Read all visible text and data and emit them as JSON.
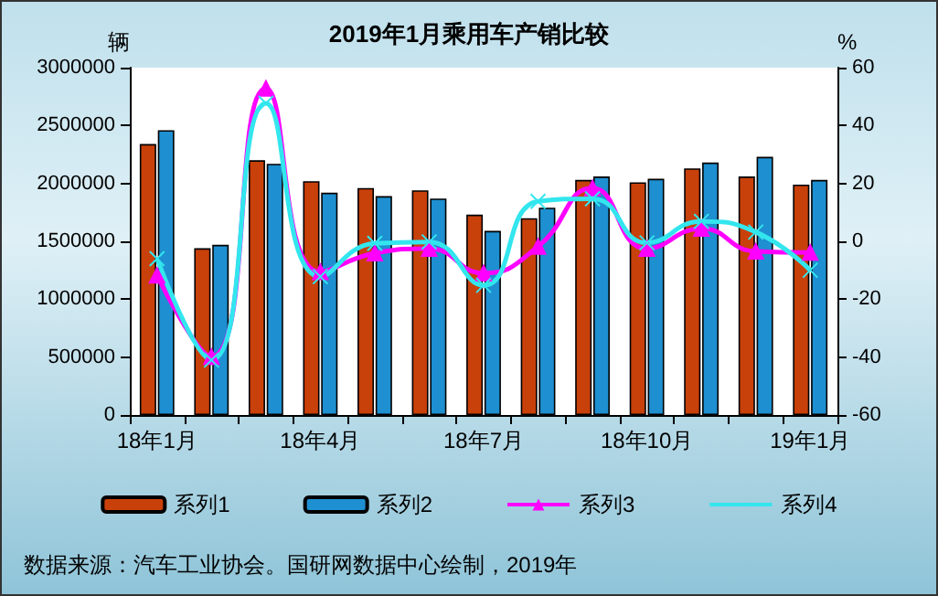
{
  "chart_data": {
    "type": "bar",
    "title": "2019年1月乘用车产销比较",
    "ylabel": "辆",
    "y2label": "%",
    "categories": [
      "18年1月",
      null,
      null,
      "18年4月",
      null,
      null,
      "18年7月",
      null,
      null,
      "18年10月",
      null,
      null,
      "19年1月"
    ],
    "series": [
      {
        "name": "系列1",
        "color": "#c8400a",
        "values": [
          2340000,
          1440000,
          2200000,
          2020000,
          1960000,
          1940000,
          1730000,
          1700000,
          2030000,
          2010000,
          2130000,
          2060000,
          1990000
        ]
      },
      {
        "name": "系列2",
        "color": "#1e8fd0",
        "values": [
          2460000,
          1470000,
          2170000,
          1920000,
          1890000,
          1870000,
          1590000,
          1790000,
          2060000,
          2040000,
          2180000,
          2230000,
          2030000
        ]
      },
      {
        "name": "系列3",
        "type": "line",
        "axis": "y2",
        "color": "#ff00ff",
        "marker": "triangle",
        "values": [
          -11.8,
          -39.9,
          52.8,
          -10.6,
          -4.1,
          -2.5,
          -11,
          -1.8,
          18.4,
          -2.5,
          4.4,
          -3.5,
          -3.9
        ]
      },
      {
        "name": "系列4",
        "type": "line",
        "axis": "y2",
        "color": "#33e6ee",
        "marker": "cross",
        "values": [
          -6,
          -41,
          47.7,
          -12.2,
          -0.7,
          -0.2,
          -15.2,
          13.8,
          14.7,
          -0.5,
          6.9,
          3.2,
          -10
        ]
      }
    ],
    "ylim": [
      0,
      3000000
    ],
    "yticks": [
      0,
      500000,
      1000000,
      1500000,
      2000000,
      2500000,
      3000000
    ],
    "y2lim": [
      -60,
      60
    ],
    "y2ticks": [
      -60,
      -40,
      -20,
      0,
      20,
      40,
      60
    ],
    "grid": false,
    "legend": "bottom",
    "annotations": [
      "数据来源：汽车工业协会。国研网数据中心绘制，2019年"
    ]
  }
}
